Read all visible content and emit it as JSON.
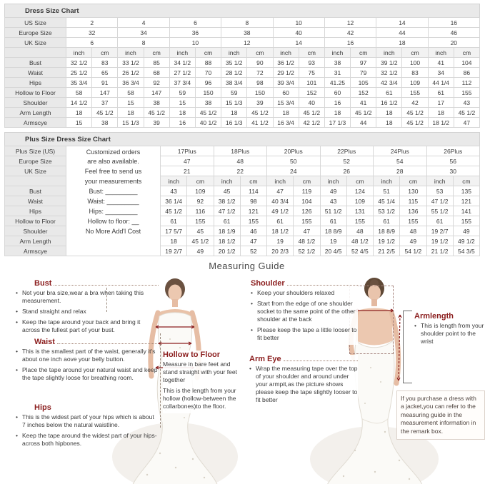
{
  "size_chart": {
    "title": "Dress Size Chart",
    "unit_headers": [
      "inch",
      "cm"
    ],
    "size_rows": [
      {
        "label": "US Size",
        "values": [
          "2",
          "4",
          "6",
          "8",
          "10",
          "12",
          "14",
          "16"
        ]
      },
      {
        "label": "Europe Size",
        "values": [
          "32",
          "34",
          "36",
          "38",
          "40",
          "42",
          "44",
          "46"
        ]
      },
      {
        "label": "UK Size",
        "values": [
          "6",
          "8",
          "10",
          "12",
          "14",
          "16",
          "18",
          "20"
        ]
      }
    ],
    "measure_rows": [
      {
        "label": "Bust",
        "values": [
          "32 1/2",
          "83",
          "33 1/2",
          "85",
          "34 1/2",
          "88",
          "35 1/2",
          "90",
          "36 1/2",
          "93",
          "38",
          "97",
          "39 1/2",
          "100",
          "41",
          "104"
        ]
      },
      {
        "label": "Waist",
        "values": [
          "25 1/2",
          "65",
          "26 1/2",
          "68",
          "27 1/2",
          "70",
          "28 1/2",
          "72",
          "29 1/2",
          "75",
          "31",
          "79",
          "32 1/2",
          "83",
          "34",
          "86"
        ]
      },
      {
        "label": "Hips",
        "values": [
          "35 3/4",
          "91",
          "36 3/4",
          "92",
          "37 3/4",
          "96",
          "38 3/4",
          "98",
          "39 3/4",
          "101",
          "41.25",
          "105",
          "42 3/4",
          "109",
          "44 1/4",
          "112"
        ]
      },
      {
        "label": "Hollow to Floor",
        "values": [
          "58",
          "147",
          "58",
          "147",
          "59",
          "150",
          "59",
          "150",
          "60",
          "152",
          "60",
          "152",
          "61",
          "155",
          "61",
          "155"
        ]
      },
      {
        "label": "Shoulder",
        "values": [
          "14 1/2",
          "37",
          "15",
          "38",
          "15",
          "38",
          "15 1/3",
          "39",
          "15 3/4",
          "40",
          "16",
          "41",
          "16 1/2",
          "42",
          "17",
          "43"
        ]
      },
      {
        "label": "Arm Length",
        "values": [
          "18",
          "45 1/2",
          "18",
          "45 1/2",
          "18",
          "45 1/2",
          "18",
          "45 1/2",
          "18",
          "45 1/2",
          "18",
          "45 1/2",
          "18",
          "45 1/2",
          "18",
          "45 1/2"
        ]
      },
      {
        "label": "Armscye",
        "values": [
          "15",
          "38",
          "15 1/3",
          "39",
          "16",
          "40 1/2",
          "16 1/3",
          "41 1/2",
          "16 3/4",
          "42 1/2",
          "17 1/3",
          "44",
          "18",
          "45 1/2",
          "18 1/2",
          "47"
        ]
      }
    ]
  },
  "plus_chart": {
    "title": "Plus Size Dress Size Chart",
    "unit_headers": [
      "inch",
      "cm"
    ],
    "custom_note_lines": [
      "Customized orders",
      "are also available.",
      "Feel free to send us",
      "your measurements",
      "Bust: _________",
      "Waist: _________",
      "Hips: _________",
      "Hollow to floor: __",
      "No More Add'l Cost"
    ],
    "size_rows": [
      {
        "label": "Plus Size (US)",
        "values": [
          "17Plus",
          "18Plus",
          "20Plus",
          "22Plus",
          "24Plus",
          "26Plus"
        ]
      },
      {
        "label": "Europe Size",
        "values": [
          "47",
          "48",
          "50",
          "52",
          "54",
          "56"
        ]
      },
      {
        "label": "UK Size",
        "values": [
          "21",
          "22",
          "24",
          "26",
          "28",
          "30"
        ]
      }
    ],
    "measure_rows": [
      {
        "label": "Bust",
        "values": [
          "43",
          "109",
          "45",
          "114",
          "47",
          "119",
          "49",
          "124",
          "51",
          "130",
          "53",
          "135"
        ]
      },
      {
        "label": "Waist",
        "values": [
          "36 1/4",
          "92",
          "38 1/2",
          "98",
          "40 3/4",
          "104",
          "43",
          "109",
          "45 1/4",
          "115",
          "47 1/2",
          "121"
        ]
      },
      {
        "label": "Hips",
        "values": [
          "45 1/2",
          "116",
          "47 1/2",
          "121",
          "49 1/2",
          "126",
          "51 1/2",
          "131",
          "53 1/2",
          "136",
          "55 1/2",
          "141"
        ]
      },
      {
        "label": "Hollow to Floor",
        "values": [
          "61",
          "155",
          "61",
          "155",
          "61",
          "155",
          "61",
          "155",
          "61",
          "155",
          "61",
          "155"
        ]
      },
      {
        "label": "Shoulder",
        "values": [
          "17 5/7",
          "45",
          "18 1/9",
          "46",
          "18 1/2",
          "47",
          "18 8/9",
          "48",
          "18 8/9",
          "48",
          "19 2/7",
          "49"
        ]
      },
      {
        "label": "Arm Length",
        "values": [
          "18",
          "45 1/2",
          "18 1/2",
          "47",
          "19",
          "48 1/2",
          "19",
          "48 1/2",
          "19 1/2",
          "49",
          "19 1/2",
          "49 1/2"
        ]
      },
      {
        "label": "Armscye",
        "values": [
          "19 2/7",
          "49",
          "20 1/2",
          "52",
          "20 2/3",
          "52 1/2",
          "20 4/5",
          "52 4/5",
          "21 2/5",
          "54 1/2",
          "21 1/2",
          "54 3/5"
        ]
      }
    ]
  },
  "guide": {
    "title": "Measuring Guide",
    "bust": {
      "heading": "Bust",
      "bullets": [
        "Not your bra size,wear a bra when taking this measurement.",
        "Stand straight and relax",
        "Keep the tape around your back and bring it across the fullest part of your bust."
      ]
    },
    "waist": {
      "heading": "Waist",
      "bullets": [
        "This is the smallest part of the waist, generally it's about one inch aove your belly button.",
        "Place the tape around your natural waist and keep the tape slightly loose for breathing room."
      ]
    },
    "hips": {
      "heading": "Hips",
      "bullets": [
        "This is the widest part of your hips which is about 7 inches below the natural waistline.",
        "Keep the tape around the widest part of your hips-across both hipbones."
      ]
    },
    "hollow": {
      "heading": "Hollow to Floor",
      "bullets": [
        "Measure in bare feet and stand straight with your feet together",
        "This is the length from your hollow (hollow-between the collarbones)to the floor."
      ]
    },
    "shoulder": {
      "heading": "Shoulder",
      "bullets": [
        "Keep your shoulders relaxed",
        "Start from the edge of one shoulder socket to the same point of the other shoulder at the back",
        "Please keep the tape a little looser to fit better"
      ]
    },
    "armeye": {
      "heading": "Arm Eye",
      "bullets": [
        "Wrap the measuring tape over the top of your shoulder and around under your armpit,as the picture shows please keep the tape slightly looser to fit better"
      ]
    },
    "armlength": {
      "heading": "Armlength",
      "bullets": [
        "This is length from your shoulder point to the wrist"
      ]
    },
    "note": "If you purchase a dress with a jacket,you can refer to the measuring guide in the measurement information in the remark box."
  },
  "colors": {
    "heading_maroon": "#8b1e1e",
    "label_bg": "#e9e9e9",
    "measure_line": "#8b1e1e"
  }
}
